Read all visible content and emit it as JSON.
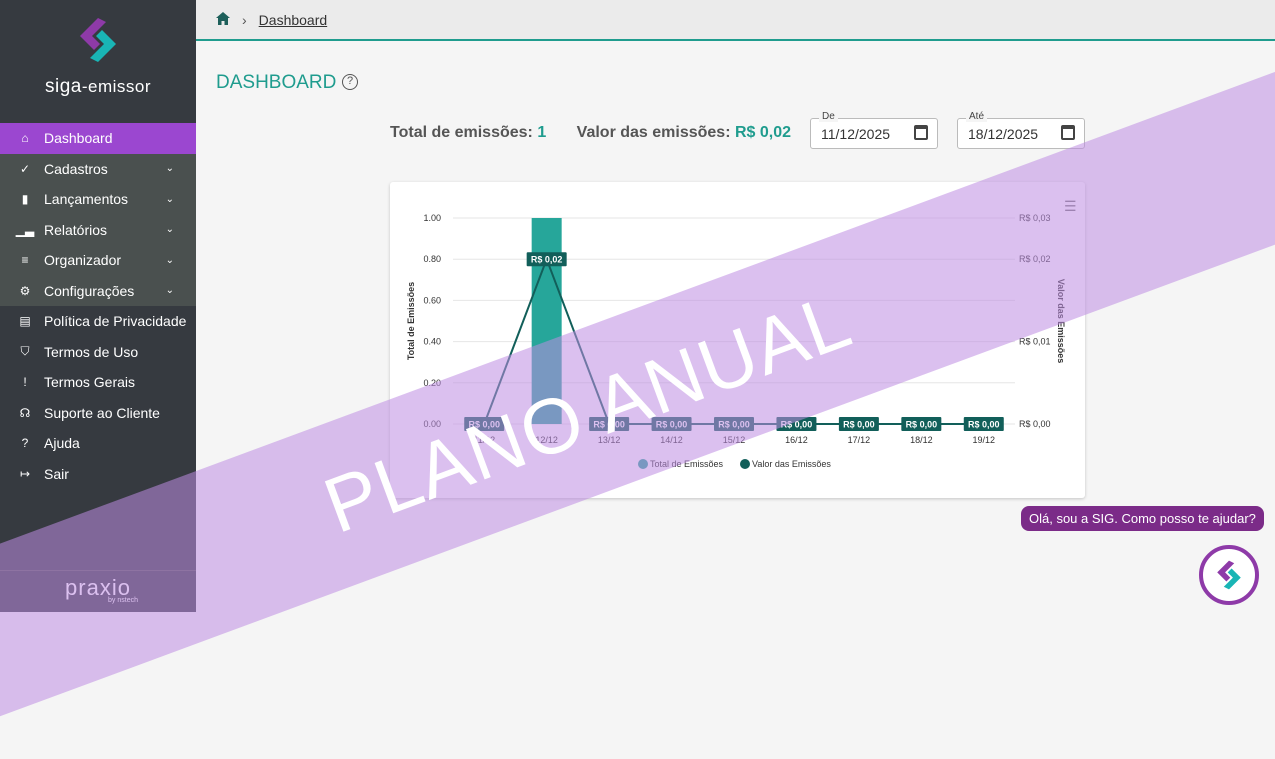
{
  "sidebar": {
    "brand_main": "siga",
    "brand_sub": "-emissor",
    "items": [
      {
        "label": "Dashboard",
        "icon": "home-icon",
        "active": true
      },
      {
        "label": "Cadastros",
        "icon": "file-check-icon",
        "expandable": true
      },
      {
        "label": "Lançamentos",
        "icon": "file-icon",
        "expandable": true
      },
      {
        "label": "Relatórios",
        "icon": "bar-chart-icon",
        "expandable": true
      },
      {
        "label": "Organizador",
        "icon": "sort-icon",
        "expandable": true
      },
      {
        "label": "Configurações",
        "icon": "gear-icon",
        "expandable": true
      },
      {
        "label": "Política de Privacidade",
        "icon": "document-icon"
      },
      {
        "label": "Termos de Uso",
        "icon": "shield-icon"
      },
      {
        "label": "Termos Gerais",
        "icon": "alert-file-icon"
      },
      {
        "label": "Suporte ao Cliente",
        "icon": "headset-icon"
      },
      {
        "label": "Ajuda",
        "icon": "help-icon"
      },
      {
        "label": "Sair",
        "icon": "logout-icon"
      }
    ],
    "footer_logo": "praxio",
    "footer_sub": "by nstech"
  },
  "breadcrumb": {
    "current": "Dashboard"
  },
  "page": {
    "title": "DASHBOARD"
  },
  "stats": {
    "total_label": "Total de emissões:",
    "total_value": "1",
    "valor_label": "Valor das emissões:",
    "valor_value": "R$ 0,02"
  },
  "filters": {
    "from_label": "De",
    "from_value": "11/12/2025",
    "to_label": "Até",
    "to_value": "18/12/2025"
  },
  "watermark": "PLANO ANUAL",
  "chat": {
    "message": "Olá, sou a SIG. Como posso te ajudar?"
  },
  "colors": {
    "accent": "#1f9c8e",
    "active": "#9b47d0",
    "bar": "#26a69a",
    "line": "#125f5a"
  },
  "chart_data": {
    "type": "bar+line",
    "categories": [
      "11/12",
      "12/12",
      "13/12",
      "14/12",
      "15/12",
      "16/12",
      "17/12",
      "18/12",
      "19/12"
    ],
    "series": [
      {
        "name": "Total de Emissões",
        "type": "bar",
        "axis": "left",
        "values": [
          0,
          1,
          0,
          0,
          0,
          0,
          0,
          0,
          0
        ]
      },
      {
        "name": "Valor das Emissões",
        "type": "line",
        "axis": "right",
        "values": [
          0,
          0.02,
          0,
          0,
          0,
          0,
          0,
          0,
          0
        ],
        "labels": [
          "R$ 0,00",
          "R$ 0,02",
          "R$ 0,00",
          "R$ 0,00",
          "R$ 0,00",
          "R$ 0,00",
          "R$ 0,00",
          "R$ 0,00",
          "R$ 0,00"
        ]
      }
    ],
    "ylabel": "Total de Emissões",
    "y2label": "Valor das Emissões",
    "ylim": [
      0,
      1
    ],
    "yticks": [
      "0.00",
      "0.20",
      "0.40",
      "0.60",
      "0.80",
      "1.00"
    ],
    "y2lim": [
      0,
      0.025
    ],
    "y2ticks": [
      {
        "v": 0,
        "l": "R$ 0,00"
      },
      {
        "v": 0.01,
        "l": "R$ 0,01"
      },
      {
        "v": 0.02,
        "l": "R$ 0,02"
      },
      {
        "v": 0.025,
        "l": "R$ 0,03"
      }
    ],
    "grid": true,
    "legend": "bottom"
  }
}
